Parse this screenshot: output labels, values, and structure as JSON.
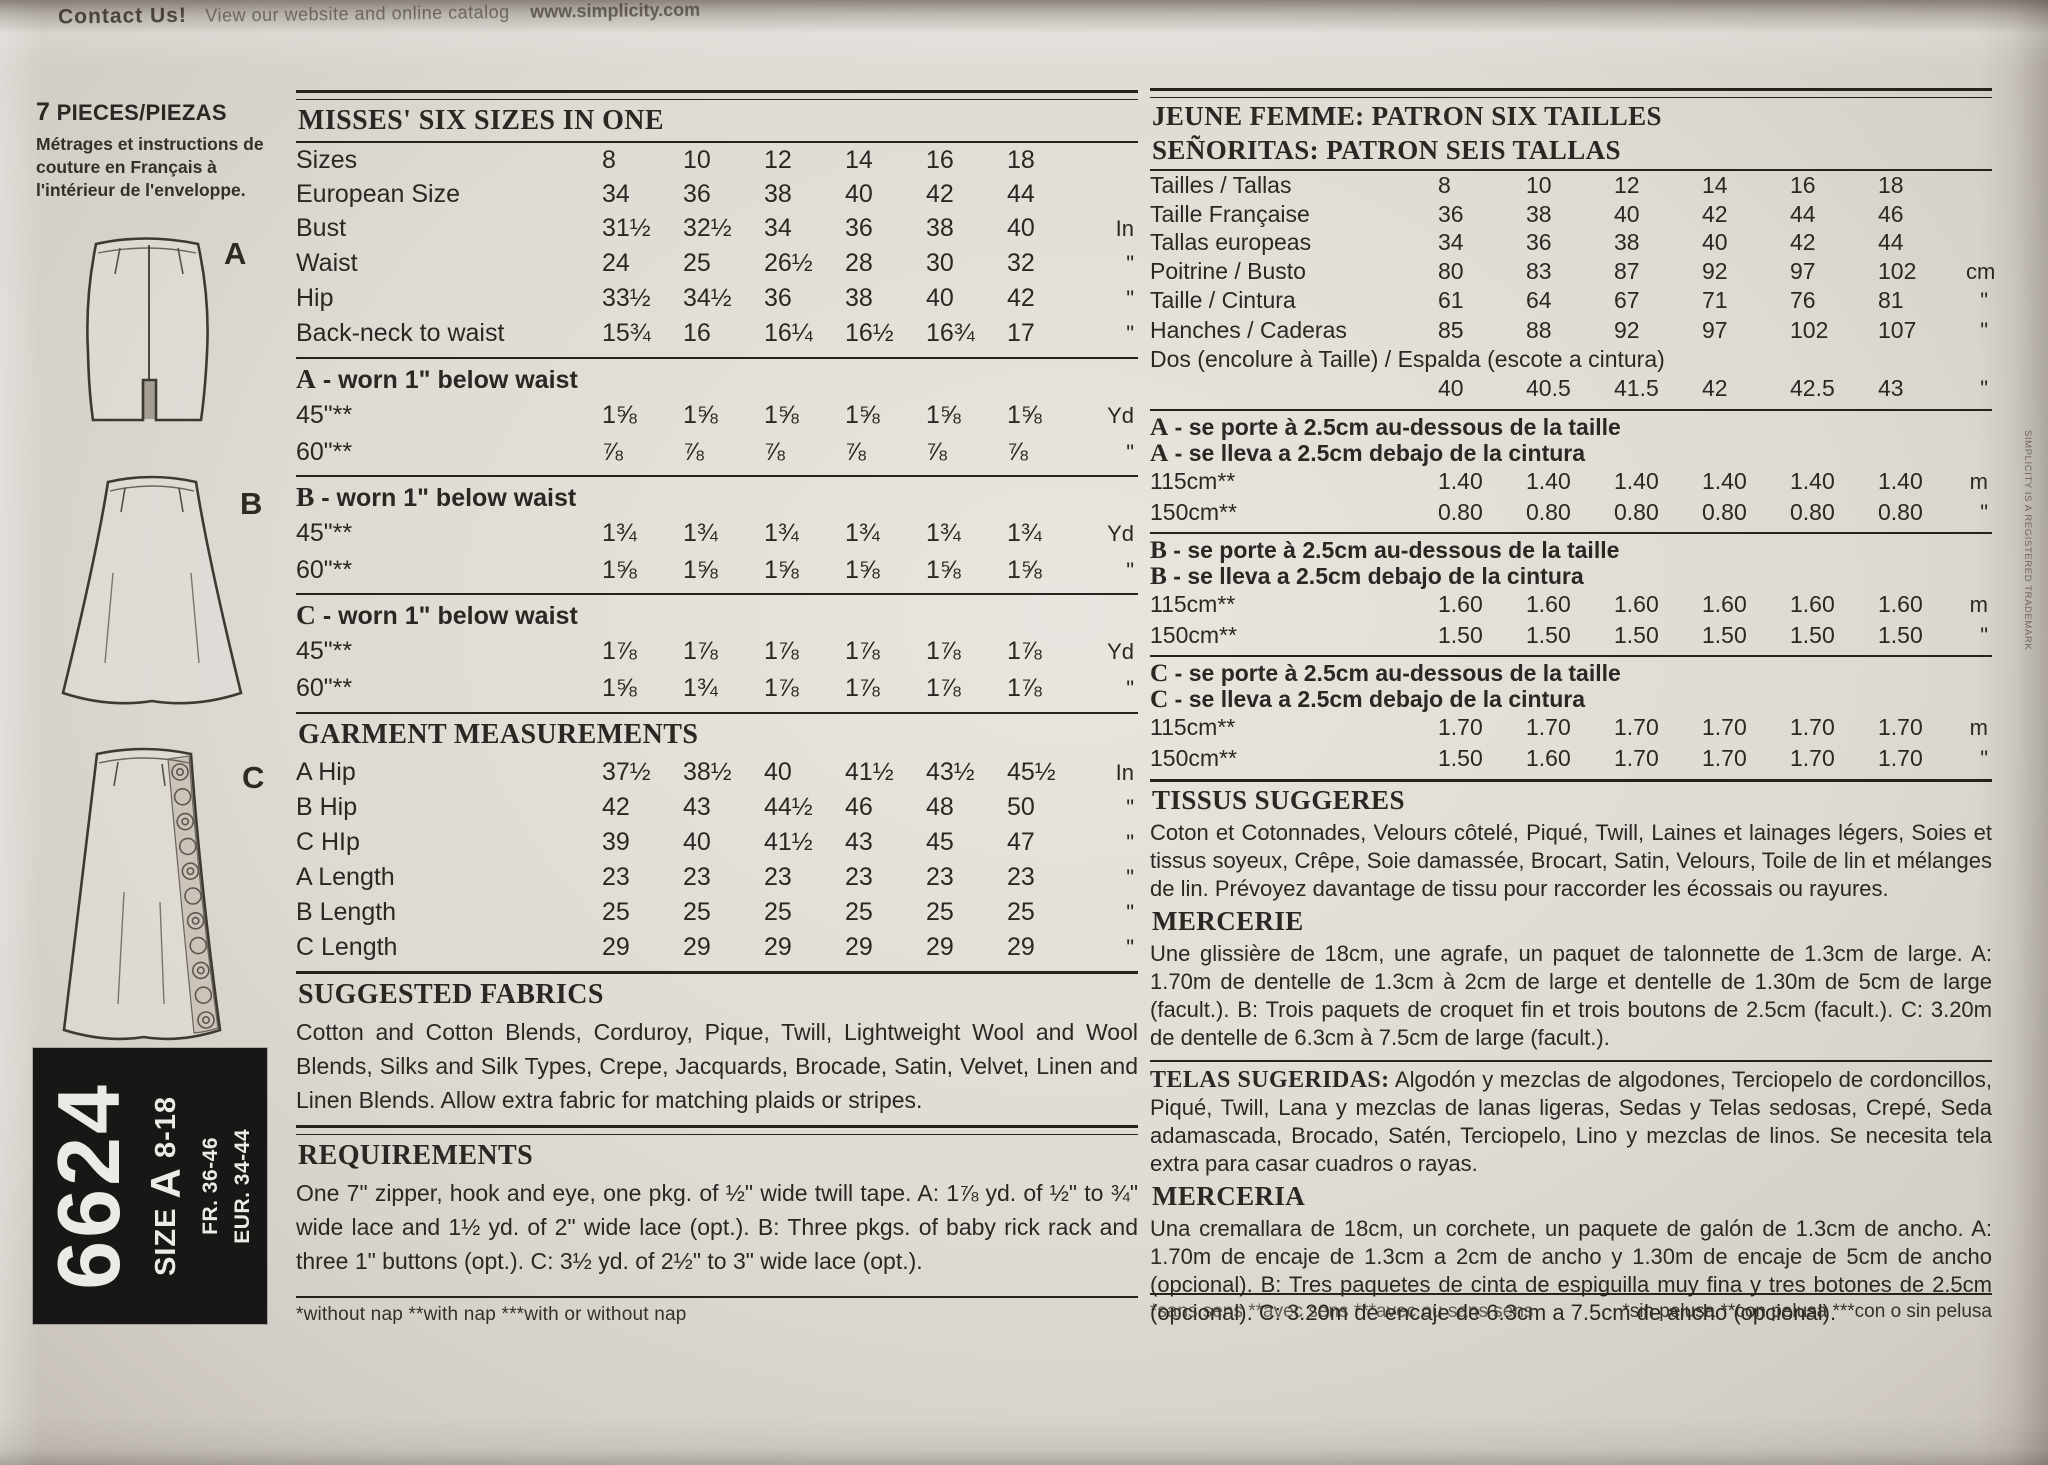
{
  "top": {
    "contact": "Contact Us!",
    "tagline": "View our website and online catalog",
    "site": "www.simplicity.com"
  },
  "side_note": "SIMPLICITY IS A REGISTERED TRADEMARK",
  "left": {
    "pieces_count": "7",
    "pieces_label": "PIECES/PIEZAS",
    "note": "Métrages et instructions de couture en Français à l'intérieur de l'enveloppe.",
    "views": {
      "a": "A",
      "b": "B",
      "c": "C"
    },
    "id_block": {
      "number": "6624",
      "size_word": "SIZE",
      "size_letter": "A",
      "size_range": "8-18",
      "fr": "FR. 36-46",
      "eur": "EUR. 34-44"
    }
  },
  "english": {
    "title": "MISSES' SIX SIZES IN ONE",
    "size_table": {
      "rows": [
        {
          "label": "Sizes",
          "values": [
            "8",
            "10",
            "12",
            "14",
            "16",
            "18"
          ],
          "unit": ""
        },
        {
          "label": "European Size",
          "values": [
            "34",
            "36",
            "38",
            "40",
            "42",
            "44"
          ],
          "unit": ""
        },
        {
          "label": "Bust",
          "values": [
            "31½",
            "32½",
            "34",
            "36",
            "38",
            "40"
          ],
          "unit": "In"
        },
        {
          "label": "Waist",
          "values": [
            "24",
            "25",
            "26½",
            "28",
            "30",
            "32"
          ],
          "unit": "\""
        },
        {
          "label": "Hip",
          "values": [
            "33½",
            "34½",
            "36",
            "38",
            "40",
            "42"
          ],
          "unit": "\""
        },
        {
          "label": "Back-neck to waist",
          "values": [
            "15¾",
            "16",
            "16¼",
            "16½",
            "16¾",
            "17"
          ],
          "unit": "\""
        }
      ]
    },
    "yardage_sections": [
      {
        "headings": [
          "A - worn 1\" below waist"
        ],
        "rows": [
          {
            "label": "45\"**",
            "values": [
              "1⅝",
              "1⅝",
              "1⅝",
              "1⅝",
              "1⅝",
              "1⅝"
            ],
            "unit": "Yd"
          },
          {
            "label": "60\"**",
            "values": [
              "⅞",
              "⅞",
              "⅞",
              "⅞",
              "⅞",
              "⅞"
            ],
            "unit": "\""
          }
        ]
      },
      {
        "headings": [
          "B - worn 1\" below waist"
        ],
        "rows": [
          {
            "label": "45\"**",
            "values": [
              "1¾",
              "1¾",
              "1¾",
              "1¾",
              "1¾",
              "1¾"
            ],
            "unit": "Yd"
          },
          {
            "label": "60\"**",
            "values": [
              "1⅝",
              "1⅝",
              "1⅝",
              "1⅝",
              "1⅝",
              "1⅝"
            ],
            "unit": "\""
          }
        ]
      },
      {
        "headings": [
          "C - worn 1\" below waist"
        ],
        "rows": [
          {
            "label": "45\"**",
            "values": [
              "1⅞",
              "1⅞",
              "1⅞",
              "1⅞",
              "1⅞",
              "1⅞"
            ],
            "unit": "Yd"
          },
          {
            "label": "60\"**",
            "values": [
              "1⅝",
              "1¾",
              "1⅞",
              "1⅞",
              "1⅞",
              "1⅞"
            ],
            "unit": "\""
          }
        ]
      }
    ],
    "garment_title": "GARMENT MEASUREMENTS",
    "garment_table": {
      "rows": [
        {
          "label": "A Hip",
          "values": [
            "37½",
            "38½",
            "40",
            "41½",
            "43½",
            "45½"
          ],
          "unit": "In"
        },
        {
          "label": "B Hip",
          "values": [
            "42",
            "43",
            "44½",
            "46",
            "48",
            "50"
          ],
          "unit": "\""
        },
        {
          "label": "C HIp",
          "values": [
            "39",
            "40",
            "41½",
            "43",
            "45",
            "47"
          ],
          "unit": "\""
        },
        {
          "label": "A Length",
          "values": [
            "23",
            "23",
            "23",
            "23",
            "23",
            "23"
          ],
          "unit": "\""
        },
        {
          "label": "B Length",
          "values": [
            "25",
            "25",
            "25",
            "25",
            "25",
            "25"
          ],
          "unit": "\""
        },
        {
          "label": "C Length",
          "values": [
            "29",
            "29",
            "29",
            "29",
            "29",
            "29"
          ],
          "unit": "\""
        }
      ]
    },
    "fabrics_title": "SUGGESTED FABRICS",
    "fabrics_text": "Cotton and Cotton Blends, Corduroy, Pique, Twill, Lightweight Wool and Wool Blends, Silks and Silk Types, Crepe, Jacquards, Brocade, Satin, Velvet, Linen and Linen Blends. Allow extra fabric for matching plaids or stripes.",
    "req_title": "REQUIREMENTS",
    "req_text": "One 7\" zipper, hook and eye, one pkg. of ½\" wide twill tape. A: 1⅞ yd. of ½\" to ¾\" wide lace and 1½ yd. of 2\" wide lace (opt.). B: Three pkgs. of baby rick rack and three 1\" buttons (opt.). C: 3½ yd. of 2½\" to 3\" wide lace (opt.).",
    "footnote": "*without nap    **with nap    ***with or without nap"
  },
  "metric": {
    "title1": "JEUNE FEMME: PATRON SIX TAILLES",
    "title2": "SEÑORITAS: PATRON SEIS TALLAS",
    "size_table": {
      "rows": [
        {
          "label": "Tailles / Tallas",
          "values": [
            "8",
            "10",
            "12",
            "14",
            "16",
            "18"
          ],
          "unit": ""
        },
        {
          "label": "Taille Française",
          "values": [
            "36",
            "38",
            "40",
            "42",
            "44",
            "46"
          ],
          "unit": ""
        },
        {
          "label": "Tallas europeas",
          "values": [
            "34",
            "36",
            "38",
            "40",
            "42",
            "44"
          ],
          "unit": ""
        },
        {
          "label": "Poitrine / Busto",
          "values": [
            "80",
            "83",
            "87",
            "92",
            "97",
            "102"
          ],
          "unit": "cm"
        },
        {
          "label": "Taille / Cintura",
          "values": [
            "61",
            "64",
            "67",
            "71",
            "76",
            "81"
          ],
          "unit": "\""
        },
        {
          "label": "Hanches / Caderas",
          "values": [
            "85",
            "88",
            "92",
            "97",
            "102",
            "107"
          ],
          "unit": "\""
        },
        {
          "label": "Dos (encolure à Taille) / Espalda (escote a cintura)"
        },
        {
          "label": "",
          "values": [
            "40",
            "40.5",
            "41.5",
            "42",
            "42.5",
            "43"
          ],
          "unit": "\""
        }
      ]
    },
    "yardage_sections": [
      {
        "headings": [
          "A - se porte à 2.5cm au-dessous de la taille",
          "A - se lleva a 2.5cm debajo de la cintura"
        ],
        "rows": [
          {
            "label": "115cm**",
            "values": [
              "1.40",
              "1.40",
              "1.40",
              "1.40",
              "1.40",
              "1.40"
            ],
            "unit": "m"
          },
          {
            "label": "150cm**",
            "values": [
              "0.80",
              "0.80",
              "0.80",
              "0.80",
              "0.80",
              "0.80"
            ],
            "unit": "\""
          }
        ]
      },
      {
        "headings": [
          "B - se porte à 2.5cm au-dessous de la taille",
          "B - se lleva a 2.5cm debajo de la cintura"
        ],
        "rows": [
          {
            "label": "115cm**",
            "values": [
              "1.60",
              "1.60",
              "1.60",
              "1.60",
              "1.60",
              "1.60"
            ],
            "unit": "m"
          },
          {
            "label": "150cm**",
            "values": [
              "1.50",
              "1.50",
              "1.50",
              "1.50",
              "1.50",
              "1.50"
            ],
            "unit": "\""
          }
        ]
      },
      {
        "headings": [
          "C - se porte à 2.5cm au-dessous de la taille",
          "C - se lleva a 2.5cm debajo de la cintura"
        ],
        "rows": [
          {
            "label": "115cm**",
            "values": [
              "1.70",
              "1.70",
              "1.70",
              "1.70",
              "1.70",
              "1.70"
            ],
            "unit": "m"
          },
          {
            "label": "150cm**",
            "values": [
              "1.50",
              "1.60",
              "1.70",
              "1.70",
              "1.70",
              "1.70"
            ],
            "unit": "\""
          }
        ]
      }
    ],
    "tissus_title": "TISSUS SUGGERES",
    "tissus_text": "Coton et Cotonnades, Velours côtelé, Piqué, Twill, Laines et lainages légers, Soies et tissus soyeux, Crêpe, Soie damassée, Brocart, Satin, Velours, Toile de lin et mélanges de lin. Prévoyez davantage de tissu pour raccorder les écossais ou rayures.",
    "mercerie_title": "MERCERIE",
    "mercerie_text": "Une glissière de 18cm, une agrafe, un paquet de talonnette de 1.3cm de large. A: 1.70m de dentelle de 1.3cm à 2cm de large et dentelle de 1.30m de 5cm de large (facult.). B: Trois paquets de croquet fin et trois boutons de 2.5cm (facult.). C: 3.20m de dentelle de 6.3cm à 7.5cm de large (facult.).",
    "telas_title": "TELAS SUGERIDAS:",
    "telas_text": "Algodón y mezclas de algodones, Terciopelo de cordoncillos, Piqué, Twill, Lana y mezclas de lanas ligeras, Sedas y Telas sedosas, Crepé, Seda adamascada, Brocado, Satén, Terciopelo, Lino y mezclas de linos. Se necesita tela extra para casar cuadros o rayas.",
    "merceria_title": "MERCERIA",
    "merceria_text": "Una cremallara de 18cm, un corchete, un paquete de galón de 1.3cm de ancho. A: 1.70m de encaje de 1.3cm a 2cm de ancho y 1.30m de encaje de 5cm de ancho (opcional). B: Tres paquetes de cinta de espiguilla muy fina y tres botones de 2.5cm (opcional). C: 3.20m de encaje de 6.3cm a 7.5cm de ancho (opcional).",
    "footnote_fr": "*sans sens   **avec sens   ***avec ou sans sens",
    "footnote_es": "*sin pelusa   **con pelusa   ***con o sin pelusa"
  }
}
